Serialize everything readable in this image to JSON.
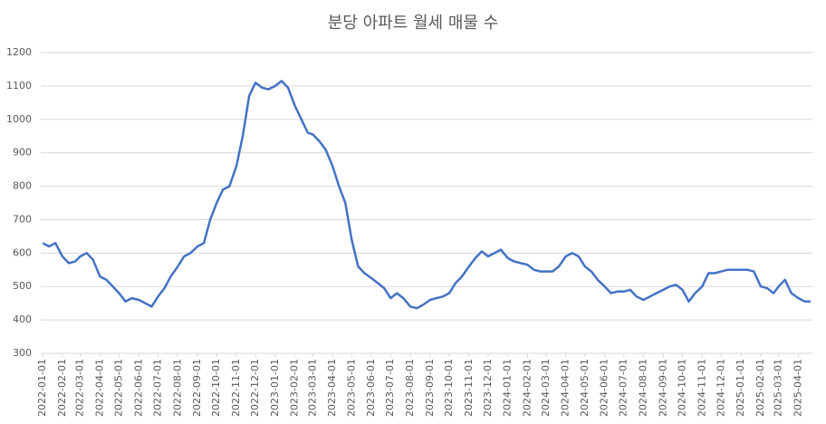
{
  "chart_data": {
    "type": "line",
    "title": "분당 아파트 월세 매물 수",
    "x": [
      "2022-01-01",
      "2022-01-11",
      "2022-01-21",
      "2022-02-01",
      "2022-02-11",
      "2022-02-21",
      "2022-03-01",
      "2022-03-11",
      "2022-03-21",
      "2022-04-01",
      "2022-04-11",
      "2022-04-21",
      "2022-05-01",
      "2022-05-11",
      "2022-05-21",
      "2022-06-01",
      "2022-06-11",
      "2022-06-21",
      "2022-07-01",
      "2022-07-11",
      "2022-07-21",
      "2022-08-01",
      "2022-08-11",
      "2022-08-21",
      "2022-09-01",
      "2022-09-11",
      "2022-09-21",
      "2022-10-01",
      "2022-10-11",
      "2022-10-21",
      "2022-11-01",
      "2022-11-11",
      "2022-11-21",
      "2022-12-01",
      "2022-12-11",
      "2022-12-21",
      "2023-01-01",
      "2023-01-11",
      "2023-01-21",
      "2023-02-01",
      "2023-02-11",
      "2023-02-21",
      "2023-03-01",
      "2023-03-11",
      "2023-03-21",
      "2023-04-01",
      "2023-04-11",
      "2023-04-21",
      "2023-05-01",
      "2023-05-11",
      "2023-05-21",
      "2023-06-01",
      "2023-06-11",
      "2023-06-21",
      "2023-07-01",
      "2023-07-11",
      "2023-07-21",
      "2023-08-01",
      "2023-08-11",
      "2023-08-21",
      "2023-09-01",
      "2023-09-11",
      "2023-09-21",
      "2023-10-01",
      "2023-10-11",
      "2023-10-21",
      "2023-11-01",
      "2023-11-11",
      "2023-11-21",
      "2023-12-01",
      "2023-12-11",
      "2023-12-21",
      "2024-01-01",
      "2024-01-11",
      "2024-01-21",
      "2024-02-01",
      "2024-02-11",
      "2024-02-21",
      "2024-03-01",
      "2024-03-11",
      "2024-03-21",
      "2024-04-01",
      "2024-04-11",
      "2024-04-21",
      "2024-05-01",
      "2024-05-11",
      "2024-05-21",
      "2024-06-01",
      "2024-06-11",
      "2024-06-21",
      "2024-07-01",
      "2024-07-11",
      "2024-07-21",
      "2024-08-01",
      "2024-08-11",
      "2024-08-21",
      "2024-09-01",
      "2024-09-11",
      "2024-09-21",
      "2024-10-01",
      "2024-10-11",
      "2024-10-21",
      "2024-11-01",
      "2024-11-11",
      "2024-11-21",
      "2024-12-01",
      "2024-12-11",
      "2024-12-21",
      "2025-01-01",
      "2025-01-11",
      "2025-01-21",
      "2025-02-01",
      "2025-02-11",
      "2025-02-21",
      "2025-03-01",
      "2025-03-11",
      "2025-03-21",
      "2025-04-01",
      "2025-04-11",
      "2025-04-20"
    ],
    "series": [
      {
        "color": "#4472c4",
        "values": [
          630,
          620,
          630,
          590,
          570,
          575,
          590,
          600,
          580,
          530,
          520,
          500,
          480,
          455,
          465,
          460,
          450,
          440,
          470,
          495,
          530,
          560,
          590,
          600,
          620,
          630,
          700,
          750,
          790,
          800,
          860,
          950,
          1070,
          1110,
          1095,
          1090,
          1100,
          1115,
          1095,
          1040,
          1000,
          960,
          955,
          935,
          910,
          860,
          800,
          750,
          640,
          560,
          540,
          525,
          510,
          495,
          465,
          480,
          465,
          440,
          435,
          445,
          460,
          465,
          470,
          480,
          510,
          530,
          560,
          585,
          605,
          590,
          600,
          610,
          585,
          575,
          570,
          565,
          550,
          545,
          545,
          545,
          560,
          590,
          600,
          590,
          560,
          545,
          520,
          500,
          480,
          485,
          485,
          490,
          470,
          460,
          470,
          480,
          490,
          500,
          505,
          490,
          455,
          480,
          500,
          540,
          540,
          545,
          550,
          550,
          550,
          550,
          545,
          500,
          495,
          480,
          500,
          520,
          480,
          465,
          455,
          455
        ]
      }
    ],
    "xlim": [
      "2021-12-29",
      "2025-04-23"
    ],
    "xticks": [
      "2022-01-01",
      "2022-02-01",
      "2022-03-01",
      "2022-04-01",
      "2022-05-01",
      "2022-06-01",
      "2022-07-01",
      "2022-08-01",
      "2022-09-01",
      "2022-10-01",
      "2022-11-01",
      "2022-12-01",
      "2023-01-01",
      "2023-02-01",
      "2023-03-01",
      "2023-04-01",
      "2023-05-01",
      "2023-06-01",
      "2023-07-01",
      "2023-08-01",
      "2023-09-01",
      "2023-10-01",
      "2023-11-01",
      "2023-12-01",
      "2024-01-01",
      "2024-02-01",
      "2024-03-01",
      "2024-04-01",
      "2024-05-01",
      "2024-06-01",
      "2024-07-01",
      "2024-08-01",
      "2024-09-01",
      "2024-10-01",
      "2024-11-01",
      "2024-12-01",
      "2025-01-01",
      "2025-02-01",
      "2025-03-01",
      "2025-04-01"
    ],
    "ylim": [
      300,
      1200
    ],
    "yticks": [
      300,
      400,
      500,
      600,
      700,
      800,
      900,
      1000,
      1100,
      1200
    ],
    "grid": true
  }
}
